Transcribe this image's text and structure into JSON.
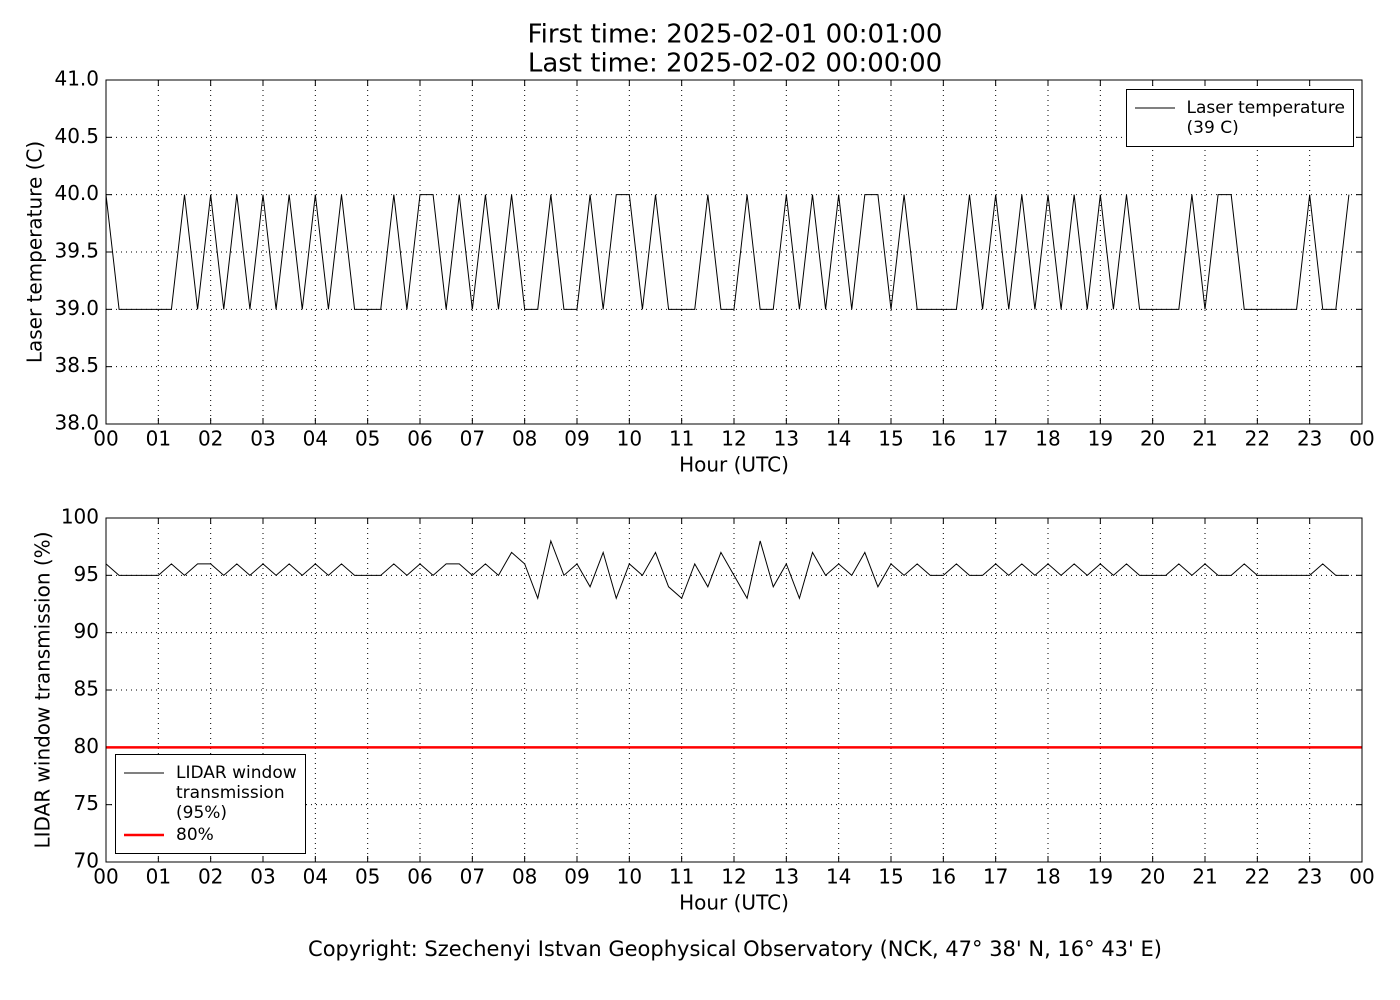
{
  "title": [
    "First time: 2025-02-01 00:01:00",
    "Last time: 2025-02-02 00:00:00"
  ],
  "footer": "Copyright: Szechenyi Istvan Geophysical Observatory (NCK, 47° 38' N, 16° 43' E)",
  "chart_data": [
    {
      "type": "line",
      "xlabel": "Hour (UTC)",
      "ylabel": "Laser temperature (C)",
      "xlim": [
        0,
        24
      ],
      "ylim": [
        38,
        41
      ],
      "grid": true,
      "legend": "upper right",
      "xticks": [
        {
          "value": 0,
          "label": "00"
        },
        {
          "value": 1,
          "label": "01"
        },
        {
          "value": 2,
          "label": "02"
        },
        {
          "value": 3,
          "label": "03"
        },
        {
          "value": 4,
          "label": "04"
        },
        {
          "value": 5,
          "label": "05"
        },
        {
          "value": 6,
          "label": "06"
        },
        {
          "value": 7,
          "label": "07"
        },
        {
          "value": 8,
          "label": "08"
        },
        {
          "value": 9,
          "label": "09"
        },
        10,
        11,
        12,
        13,
        14,
        15,
        16,
        17,
        18,
        19,
        20,
        21,
        22,
        23,
        {
          "value": 24,
          "label": "00"
        }
      ],
      "yticks": [
        {
          "value": 38,
          "label": "38.0"
        },
        38.5,
        {
          "value": 39,
          "label": "39.0"
        },
        39.5,
        {
          "value": 40,
          "label": "40.0"
        },
        40.5,
        {
          "value": 41,
          "label": "41.0"
        }
      ],
      "x": [
        0,
        0.25,
        0.5,
        0.75,
        1,
        1.25,
        1.5,
        1.75,
        2,
        2.25,
        2.5,
        2.75,
        3,
        3.25,
        3.5,
        3.75,
        4,
        4.25,
        4.5,
        4.75,
        5,
        5.25,
        5.5,
        5.75,
        6,
        6.25,
        6.5,
        6.75,
        7,
        7.25,
        7.5,
        7.75,
        8,
        8.25,
        8.5,
        8.75,
        9,
        9.25,
        9.5,
        9.75,
        10,
        10.25,
        10.5,
        10.75,
        11,
        11.25,
        11.5,
        11.75,
        12,
        12.25,
        12.5,
        12.75,
        13,
        13.25,
        13.5,
        13.75,
        14,
        14.25,
        14.5,
        14.75,
        15,
        15.25,
        15.5,
        15.75,
        16,
        16.25,
        16.5,
        16.75,
        17,
        17.25,
        17.5,
        17.75,
        18,
        18.25,
        18.5,
        18.75,
        19,
        19.25,
        19.5,
        19.75,
        20,
        20.25,
        20.5,
        20.75,
        21,
        21.25,
        21.5,
        21.75,
        22,
        22.25,
        22.5,
        22.75,
        23,
        23.25,
        23.5,
        23.75
      ],
      "series": [
        {
          "name": "Laser temperature\n(39 C)",
          "color": "#000000",
          "values": [
            40,
            39,
            39,
            39,
            39,
            39,
            40,
            39,
            40,
            39,
            40,
            39,
            40,
            39,
            40,
            39,
            40,
            39,
            40,
            39,
            39,
            39,
            40,
            39,
            40,
            40,
            39,
            40,
            39,
            40,
            39,
            40,
            39,
            39,
            40,
            39,
            39,
            40,
            39,
            40,
            40,
            39,
            40,
            39,
            39,
            39,
            40,
            39,
            39,
            40,
            39,
            39,
            40,
            39,
            40,
            39,
            40,
            39,
            40,
            40,
            39,
            40,
            39,
            39,
            39,
            39,
            40,
            39,
            40,
            39,
            40,
            39,
            40,
            39,
            40,
            39,
            40,
            39,
            40,
            39,
            39,
            39,
            39,
            40,
            39,
            40,
            40,
            39,
            39,
            39,
            39,
            39,
            40,
            39,
            39,
            40
          ]
        }
      ]
    },
    {
      "type": "line",
      "xlabel": "Hour (UTC)",
      "ylabel": "LIDAR window transmission (%)",
      "xlim": [
        0,
        24
      ],
      "ylim": [
        70,
        100
      ],
      "grid": true,
      "legend": "lower left",
      "xticks": [
        {
          "value": 0,
          "label": "00"
        },
        {
          "value": 1,
          "label": "01"
        },
        {
          "value": 2,
          "label": "02"
        },
        {
          "value": 3,
          "label": "03"
        },
        {
          "value": 4,
          "label": "04"
        },
        {
          "value": 5,
          "label": "05"
        },
        {
          "value": 6,
          "label": "06"
        },
        {
          "value": 7,
          "label": "07"
        },
        {
          "value": 8,
          "label": "08"
        },
        {
          "value": 9,
          "label": "09"
        },
        10,
        11,
        12,
        13,
        14,
        15,
        16,
        17,
        18,
        19,
        20,
        21,
        22,
        23,
        {
          "value": 24,
          "label": "00"
        }
      ],
      "yticks": [
        70,
        75,
        80,
        85,
        90,
        95,
        100
      ],
      "x": [
        0,
        0.25,
        0.5,
        0.75,
        1,
        1.25,
        1.5,
        1.75,
        2,
        2.25,
        2.5,
        2.75,
        3,
        3.25,
        3.5,
        3.75,
        4,
        4.25,
        4.5,
        4.75,
        5,
        5.25,
        5.5,
        5.75,
        6,
        6.25,
        6.5,
        6.75,
        7,
        7.25,
        7.5,
        7.75,
        8,
        8.25,
        8.5,
        8.75,
        9,
        9.25,
        9.5,
        9.75,
        10,
        10.25,
        10.5,
        10.75,
        11,
        11.25,
        11.5,
        11.75,
        12,
        12.25,
        12.5,
        12.75,
        13,
        13.25,
        13.5,
        13.75,
        14,
        14.25,
        14.5,
        14.75,
        15,
        15.25,
        15.5,
        15.75,
        16,
        16.25,
        16.5,
        16.75,
        17,
        17.25,
        17.5,
        17.75,
        18,
        18.25,
        18.5,
        18.75,
        19,
        19.25,
        19.5,
        19.75,
        20,
        20.25,
        20.5,
        20.75,
        21,
        21.25,
        21.5,
        21.75,
        22,
        22.25,
        22.5,
        22.75,
        23,
        23.25,
        23.5,
        23.75
      ],
      "series": [
        {
          "name": "LIDAR window\ntransmission\n(95%)",
          "color": "#000000",
          "values": [
            96,
            95,
            95,
            95,
            95,
            96,
            95,
            96,
            96,
            95,
            96,
            95,
            96,
            95,
            96,
            95,
            96,
            95,
            96,
            95,
            95,
            95,
            96,
            95,
            96,
            95,
            96,
            96,
            95,
            96,
            95,
            97,
            96,
            93,
            98,
            95,
            96,
            94,
            97,
            93,
            96,
            95,
            97,
            94,
            93,
            96,
            94,
            97,
            95,
            93,
            98,
            94,
            96,
            93,
            97,
            95,
            96,
            95,
            97,
            94,
            96,
            95,
            96,
            95,
            95,
            96,
            95,
            95,
            96,
            95,
            96,
            95,
            96,
            95,
            96,
            95,
            96,
            95,
            96,
            95,
            95,
            95,
            96,
            95,
            96,
            95,
            95,
            96,
            95,
            95,
            95,
            95,
            95,
            96,
            95,
            95
          ]
        }
      ],
      "hlines": [
        {
          "name": "80%",
          "value": 80,
          "color": "#ff0000"
        }
      ]
    }
  ]
}
